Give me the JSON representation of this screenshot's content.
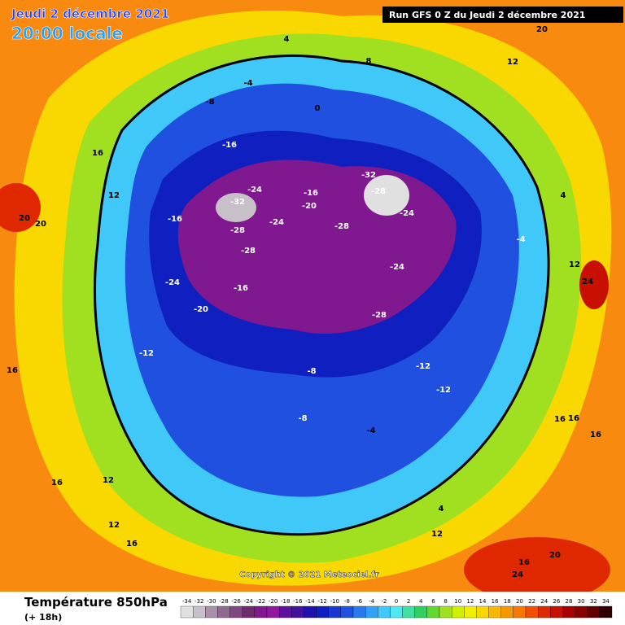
{
  "header": {
    "date": "Jeudi 2 décembre 2021",
    "time": "20:00 locale",
    "run": "Run GFS 0 Z du Jeudi 2 décembre 2021"
  },
  "copyright": "Copyright © 2021 Meteociel.fr",
  "footer": {
    "title": "Température 850hPa",
    "lead": "(+ 18h)"
  },
  "legend": {
    "ticks": [
      -34,
      -32,
      -30,
      -28,
      -26,
      -24,
      -22,
      -20,
      -18,
      -16,
      -14,
      -12,
      -10,
      -8,
      -6,
      -4,
      -2,
      0,
      2,
      4,
      6,
      8,
      10,
      12,
      14,
      16,
      18,
      20,
      22,
      24,
      26,
      28,
      30,
      32,
      34
    ],
    "colors": [
      "#e0e0e0",
      "#c8c0c8",
      "#a890a8",
      "#906890",
      "#804880",
      "#702870",
      "#801890",
      "#9018a0",
      "#6010a0",
      "#4010a0",
      "#2010b0",
      "#1020c0",
      "#1838d0",
      "#2050e0",
      "#2878f0",
      "#30a0f8",
      "#40c8f8",
      "#50e8f0",
      "#40e0a0",
      "#30d060",
      "#60d830",
      "#a0e020",
      "#d0f000",
      "#f0f000",
      "#f8d800",
      "#f8b800",
      "#f89800",
      "#f87800",
      "#f05000",
      "#e02800",
      "#c81000",
      "#a80000",
      "#880000",
      "#600000",
      "#300000"
    ]
  },
  "map": {
    "labels": [
      "20",
      "20",
      "12",
      "16",
      "16",
      "16",
      "12",
      "12",
      "-4",
      "-8",
      "-16",
      "-16",
      "-24",
      "-32",
      "-24",
      "-28",
      "-28",
      "-24",
      "-20",
      "-16",
      "-32",
      "-28",
      "-24",
      "-28",
      "-24",
      "-28",
      "-20",
      "-16",
      "-12",
      "-12",
      "-8",
      "-12",
      "-8",
      "-4",
      "0",
      "4",
      "4",
      "8",
      "12",
      "16",
      "12",
      "16",
      "24",
      "20",
      "16",
      "12",
      "16",
      "16",
      "4",
      "-4",
      "24",
      "20"
    ]
  }
}
